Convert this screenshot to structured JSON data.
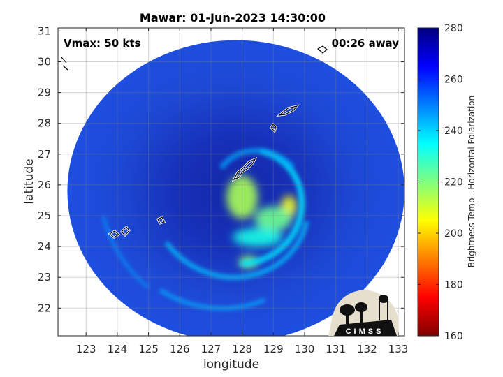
{
  "chart_data": {
    "type": "heatmap",
    "title": "Mawar: 01-Jun-2023 14:30:00",
    "xlabel": "longitude",
    "ylabel": "latitude",
    "xlim": [
      122.1,
      133.2
    ],
    "ylim": [
      21.1,
      31.1
    ],
    "xticks": [
      123,
      124,
      125,
      126,
      127,
      128,
      129,
      130,
      131,
      132,
      133
    ],
    "yticks": [
      22,
      23,
      24,
      25,
      26,
      27,
      28,
      29,
      30,
      31
    ],
    "grid": true,
    "annotations": {
      "vmax": "Vmax: 50 kts",
      "time_away": "00:26 away"
    },
    "colorbar": {
      "label": "Brightness Temp - Horizontal Polarization",
      "range": [
        160,
        280
      ],
      "ticks": [
        160,
        180,
        200,
        220,
        240,
        260,
        280
      ],
      "colormap": "jet"
    },
    "swath": {
      "center": [
        127.8,
        25.8
      ],
      "radius_deg_lon": 5.4,
      "radius_deg_lat": 4.9
    },
    "storm_center": [
      128.1,
      25.6
    ],
    "features": [
      {
        "lon": 128.0,
        "lat": 25.6,
        "tb": 215,
        "rx": 0.5,
        "ry": 0.7
      },
      {
        "lon": 129.5,
        "lat": 25.3,
        "tb": 206,
        "rx": 0.25,
        "ry": 0.35
      },
      {
        "lon": 129.0,
        "lat": 24.9,
        "tb": 222,
        "rx": 0.6,
        "ry": 0.4
      },
      {
        "lon": 128.2,
        "lat": 23.5,
        "tb": 218,
        "rx": 0.3,
        "ry": 0.2
      },
      {
        "lon": 128.5,
        "lat": 24.3,
        "tb": 232,
        "rx": 0.8,
        "ry": 0.3
      }
    ],
    "logo": "CIMSS"
  }
}
